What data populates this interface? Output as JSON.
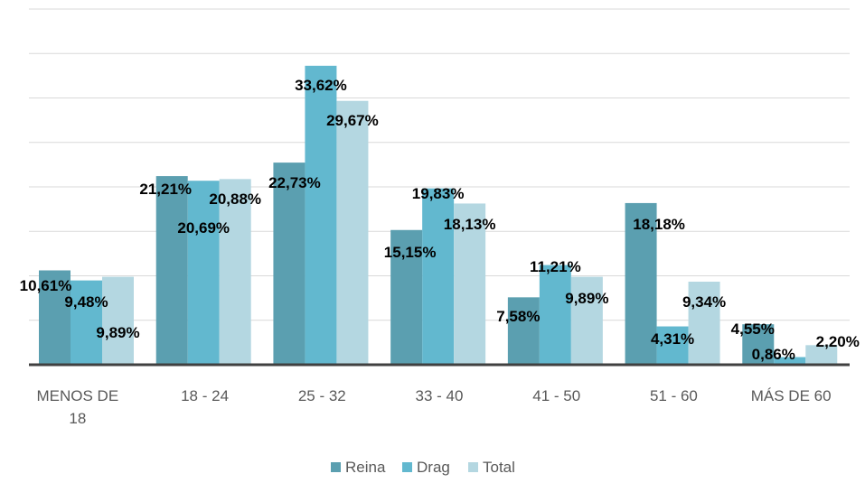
{
  "chart_data": {
    "type": "bar",
    "title": "",
    "xlabel": "",
    "ylabel": "",
    "ylim": [
      0,
      40
    ],
    "grid": true,
    "legend_position": "bottom",
    "categories": [
      "MENOS DE 18",
      "18 - 24",
      "25 - 32",
      "33 - 40",
      "41 - 50",
      "51 - 60",
      "MÁS DE 60"
    ],
    "series": [
      {
        "name": "Reina",
        "color": "#5b9fb0",
        "values": [
          10.61,
          21.21,
          22.73,
          15.15,
          7.58,
          18.18,
          4.55
        ],
        "labels": [
          "10,61%",
          "21,21%",
          "22,73%",
          "15,15%",
          "7,58%",
          "18,18%",
          "4,55%"
        ]
      },
      {
        "name": "Drag",
        "color": "#62b8cf",
        "values": [
          9.48,
          20.69,
          33.62,
          19.83,
          11.21,
          4.31,
          0.86
        ],
        "labels": [
          "9,48%",
          "20,69%",
          "33,62%",
          "19,83%",
          "11,21%",
          "4,31%",
          "0,86%"
        ]
      },
      {
        "name": "Total",
        "color": "#b4d7e1",
        "values": [
          9.89,
          20.88,
          29.67,
          18.13,
          9.89,
          9.34,
          2.2
        ],
        "labels": [
          "9,89%",
          "20,88%",
          "29,67%",
          "18,13%",
          "9,89%",
          "9,34%",
          "2,20%"
        ]
      }
    ]
  }
}
